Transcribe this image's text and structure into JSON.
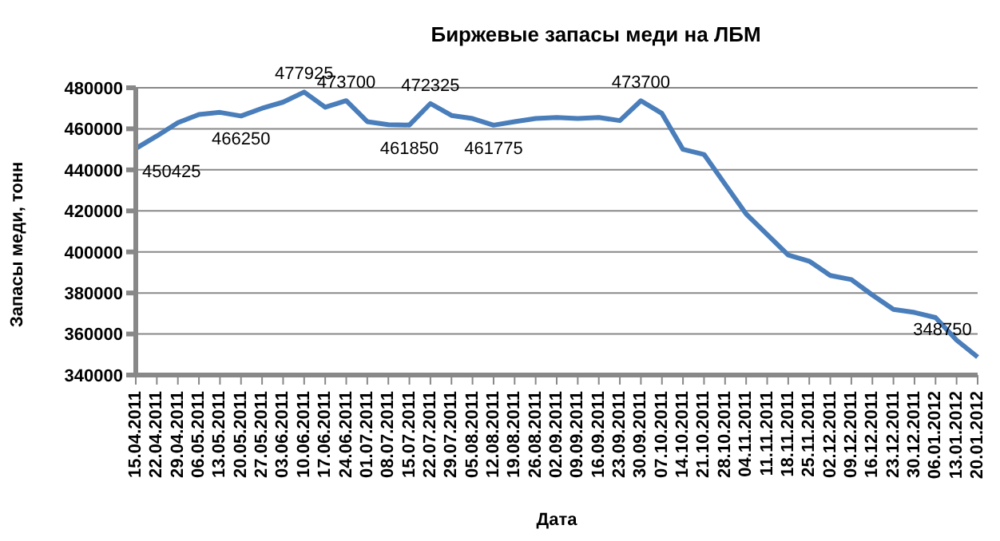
{
  "chart_data": {
    "type": "line",
    "title": "Биржевые запасы меди на ЛБМ",
    "xlabel": "Дата",
    "ylabel": "Запасы меди, тонн",
    "categories": [
      "15.04.2011",
      "22.04.2011",
      "29.04.2011",
      "06.05.2011",
      "13.05.2011",
      "20.05.2011",
      "27.05.2011",
      "03.06.2011",
      "10.06.2011",
      "17.06.2011",
      "24.06.2011",
      "01.07.2011",
      "08.07.2011",
      "15.07.2011",
      "22.07.2011",
      "29.07.2011",
      "05.08.2011",
      "12.08.2011",
      "19.08.2011",
      "26.08.2011",
      "02.09.2011",
      "09.09.2011",
      "16.09.2011",
      "23.09.2011",
      "30.09.2011",
      "07.10.2011",
      "14.10.2011",
      "21.10.2011",
      "28.10.2011",
      "04.11.2011",
      "11.11.2011",
      "18.11.2011",
      "25.11.2011",
      "02.12.2011",
      "09.12.2011",
      "16.12.2011",
      "23.12.2011",
      "30.12.2011",
      "06.01.2012",
      "13.01.2012",
      "20.01.2012"
    ],
    "series": [
      {
        "color": "#4a7ebb",
        "values": [
          450425,
          456500,
          463000,
          467000,
          468000,
          466250,
          470000,
          473000,
          477925,
          470500,
          473700,
          463500,
          462000,
          461850,
          472325,
          466500,
          465000,
          461775,
          463500,
          465000,
          465500,
          465000,
          465500,
          464000,
          473700,
          467500,
          450000,
          447500,
          433000,
          418500,
          408500,
          398500,
          395500,
          388500,
          386500,
          379000,
          372000,
          370500,
          368000,
          357000,
          348750
        ],
        "value_labels": [
          "450425",
          null,
          null,
          null,
          null,
          "466250",
          null,
          null,
          "477925",
          null,
          "473700",
          null,
          null,
          "461850",
          "472325",
          null,
          null,
          "461775",
          null,
          null,
          null,
          null,
          null,
          null,
          "473700",
          null,
          null,
          null,
          null,
          null,
          null,
          null,
          null,
          null,
          null,
          null,
          null,
          null,
          null,
          null,
          "348750"
        ]
      }
    ],
    "ylim": [
      340000,
      480000
    ],
    "yticks": [
      340000,
      360000,
      380000,
      400000,
      420000,
      440000,
      460000,
      480000
    ],
    "grid": "y",
    "legend": false,
    "marker": "none",
    "line_style": "solid"
  }
}
